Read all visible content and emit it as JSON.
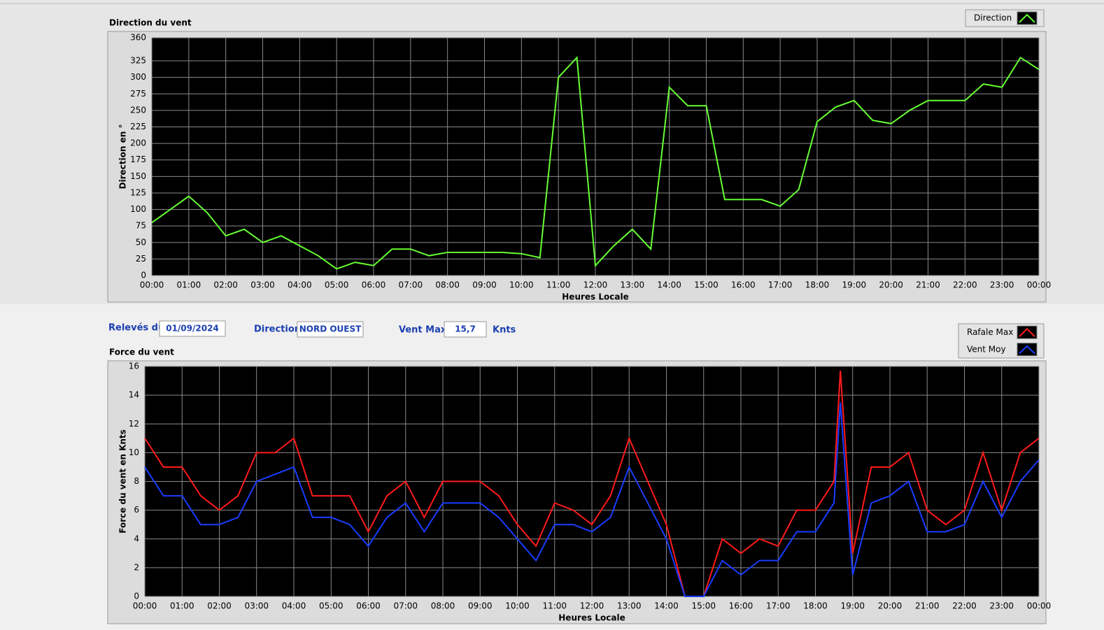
{
  "chart_data": [
    {
      "type": "line",
      "title": "Direction du vent",
      "xlabel": "Heures Locale",
      "ylabel": "Direction en °",
      "x": [
        0,
        0.5,
        1,
        1.5,
        2,
        2.5,
        3,
        3.5,
        4,
        4.5,
        5,
        5.5,
        6,
        6.5,
        7,
        7.5,
        8,
        8.5,
        9,
        9.5,
        10,
        10.5,
        11,
        11.5,
        12,
        12.5,
        13,
        13.5,
        14,
        14.5,
        15,
        15.5,
        16,
        16.5,
        17,
        17.5,
        18,
        18.5,
        19,
        19.5,
        20,
        20.5,
        21,
        21.5,
        22,
        22.5,
        23,
        23.5,
        24
      ],
      "series": [
        {
          "name": "Direction",
          "color": "#66ff33",
          "values": [
            80,
            100,
            120,
            95,
            60,
            70,
            50,
            60,
            45,
            30,
            10,
            20,
            15,
            40,
            40,
            30,
            35,
            35,
            35,
            35,
            33,
            27,
            300,
            330,
            15,
            45,
            70,
            40,
            285,
            257,
            257,
            115,
            115,
            115,
            105,
            130,
            233,
            255,
            265,
            235,
            230,
            250,
            265,
            265,
            265,
            290,
            285,
            330,
            312
          ]
        }
      ],
      "xlim": [
        0,
        24
      ],
      "ylim": [
        0,
        360
      ],
      "xticks": [
        {
          "value": 0,
          "label": "00:00"
        },
        {
          "value": 1,
          "label": "01:00"
        },
        {
          "value": 2,
          "label": "02:00"
        },
        {
          "value": 3,
          "label": "03:00"
        },
        {
          "value": 4,
          "label": "04:00"
        },
        {
          "value": 5,
          "label": "05:00"
        },
        {
          "value": 6,
          "label": "06:00"
        },
        {
          "value": 7,
          "label": "07:00"
        },
        {
          "value": 8,
          "label": "08:00"
        },
        {
          "value": 9,
          "label": "09:00"
        },
        {
          "value": 10,
          "label": "10:00"
        },
        {
          "value": 11,
          "label": "11:00"
        },
        {
          "value": 12,
          "label": "12:00"
        },
        {
          "value": 13,
          "label": "13:00"
        },
        {
          "value": 14,
          "label": "14:00"
        },
        {
          "value": 15,
          "label": "15:00"
        },
        {
          "value": 16,
          "label": "16:00"
        },
        {
          "value": 17,
          "label": "17:00"
        },
        {
          "value": 18,
          "label": "18:00"
        },
        {
          "value": 19,
          "label": "19:00"
        },
        {
          "value": 20,
          "label": "20:00"
        },
        {
          "value": 21,
          "label": "21:00"
        },
        {
          "value": 22,
          "label": "22:00"
        },
        {
          "value": 23,
          "label": "23:00"
        },
        {
          "value": 24,
          "label": "00:00"
        }
      ],
      "yticks": [
        0,
        25,
        50,
        75,
        100,
        125,
        150,
        175,
        200,
        225,
        250,
        275,
        300,
        325,
        360
      ],
      "grid": true
    },
    {
      "type": "line",
      "title": "Force du vent",
      "xlabel": "Heures Locale",
      "ylabel": "Force du vent en Knts",
      "x": [
        0,
        0.5,
        1,
        1.5,
        2,
        2.5,
        3,
        3.5,
        4,
        4.5,
        5,
        5.5,
        6,
        6.5,
        7,
        7.5,
        8,
        8.5,
        9,
        9.5,
        10,
        10.5,
        11,
        11.5,
        12,
        12.5,
        13,
        13.5,
        14,
        14.5,
        15,
        15.5,
        16,
        16.5,
        17,
        17.5,
        18,
        18.5,
        18.67,
        19,
        19.5,
        20,
        20.5,
        21,
        21.5,
        22,
        22.5,
        23,
        23.5,
        24
      ],
      "series": [
        {
          "name": "Rafale Max",
          "color": "#ff1a1a",
          "values": [
            11,
            9,
            9,
            7,
            6,
            7,
            10,
            10,
            11,
            7,
            7,
            7,
            4.5,
            7,
            8,
            5.5,
            8,
            8,
            8,
            7,
            5,
            3.5,
            6.5,
            6,
            5,
            7,
            11,
            8,
            5,
            0,
            0,
            4,
            3,
            4,
            3.5,
            6,
            6,
            8,
            15.7,
            3,
            9,
            9,
            10,
            6,
            5,
            6,
            10,
            6,
            10,
            11
          ]
        },
        {
          "name": "Vent Moy",
          "color": "#1a3cff",
          "values": [
            9,
            7,
            7,
            5,
            5,
            5.5,
            8,
            8.5,
            9,
            5.5,
            5.5,
            5,
            3.5,
            5.5,
            6.5,
            4.5,
            6.5,
            6.5,
            6.5,
            5.5,
            4,
            2.5,
            5,
            5,
            4.5,
            5.5,
            9,
            6.5,
            4,
            0,
            0,
            2.5,
            1.5,
            2.5,
            2.5,
            4.5,
            4.5,
            6.5,
            13.5,
            1.5,
            6.5,
            7,
            8,
            4.5,
            4.5,
            5,
            8,
            5.5,
            8,
            9.5
          ]
        }
      ],
      "xlim": [
        0,
        24
      ],
      "ylim": [
        0,
        16
      ],
      "xticks": [
        {
          "value": 0,
          "label": "00:00"
        },
        {
          "value": 1,
          "label": "01:00"
        },
        {
          "value": 2,
          "label": "02:00"
        },
        {
          "value": 3,
          "label": "03:00"
        },
        {
          "value": 4,
          "label": "04:00"
        },
        {
          "value": 5,
          "label": "05:00"
        },
        {
          "value": 6,
          "label": "06:00"
        },
        {
          "value": 7,
          "label": "07:00"
        },
        {
          "value": 8,
          "label": "08:00"
        },
        {
          "value": 9,
          "label": "09:00"
        },
        {
          "value": 10,
          "label": "10:00"
        },
        {
          "value": 11,
          "label": "11:00"
        },
        {
          "value": 12,
          "label": "12:00"
        },
        {
          "value": 13,
          "label": "13:00"
        },
        {
          "value": 14,
          "label": "14:00"
        },
        {
          "value": 15,
          "label": "15:00"
        },
        {
          "value": 16,
          "label": "16:00"
        },
        {
          "value": 17,
          "label": "17:00"
        },
        {
          "value": 18,
          "label": "18:00"
        },
        {
          "value": 19,
          "label": "19:00"
        },
        {
          "value": 20,
          "label": "20:00"
        },
        {
          "value": 21,
          "label": "21:00"
        },
        {
          "value": 22,
          "label": "22:00"
        },
        {
          "value": 23,
          "label": "23:00"
        },
        {
          "value": 24,
          "label": "00:00"
        }
      ],
      "yticks": [
        0,
        2,
        4,
        6,
        8,
        10,
        12,
        14,
        16
      ],
      "grid": true
    }
  ],
  "fields": [
    {
      "label": "Relevés du",
      "value": "01/09/2024"
    },
    {
      "label": "Direction",
      "value": "NORD OUEST"
    },
    {
      "label": "Vent Max",
      "value": "15,7",
      "unit": "Knts"
    }
  ]
}
